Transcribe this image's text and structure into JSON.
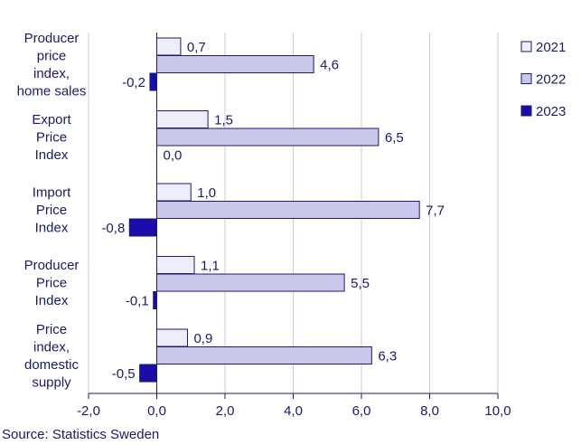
{
  "chart_data": {
    "type": "bar",
    "orientation": "horizontal",
    "categories": [
      [
        "Producer",
        "price",
        "index,",
        "home sales"
      ],
      [
        "Export",
        "Price",
        "Index"
      ],
      [
        "Import",
        "Price",
        "Index"
      ],
      [
        "Producer",
        "Price",
        "Index"
      ],
      [
        "Price",
        "index,",
        "domestic",
        "supply"
      ]
    ],
    "series": [
      {
        "name": "2021",
        "values": [
          0.7,
          1.5,
          1.0,
          1.1,
          0.9
        ],
        "labels": [
          "0,7",
          "1,5",
          "1,0",
          "1,1",
          "0,9"
        ],
        "color": "#eeeefa"
      },
      {
        "name": "2022",
        "values": [
          4.6,
          6.5,
          7.7,
          5.5,
          6.3
        ],
        "labels": [
          "4,6",
          "6,5",
          "7,7",
          "5,5",
          "6,3"
        ],
        "color": "#c8c8ec"
      },
      {
        "name": "2023",
        "values": [
          -0.2,
          0.0,
          -0.8,
          -0.1,
          -0.5
        ],
        "labels": [
          "-0,2",
          "0,0",
          "-0,8",
          "-0,1",
          "-0,5"
        ],
        "color": "#1a0dab"
      }
    ],
    "xlim": [
      -2,
      10
    ],
    "xticks": [
      -2,
      0,
      2,
      4,
      6,
      8,
      10
    ],
    "xtick_labels": [
      "-2,0",
      "0,0",
      "2,0",
      "4,0",
      "6,0",
      "8,0",
      "10,0"
    ],
    "grid": true,
    "legend_position": "top-right",
    "title": "",
    "xlabel": "",
    "ylabel": ""
  },
  "source_text": "Source: Statistics Sweden",
  "colors": {
    "text": "#1a1a6e",
    "grid": "#c9c9ee",
    "bar_stroke": "#1a1a6e"
  }
}
